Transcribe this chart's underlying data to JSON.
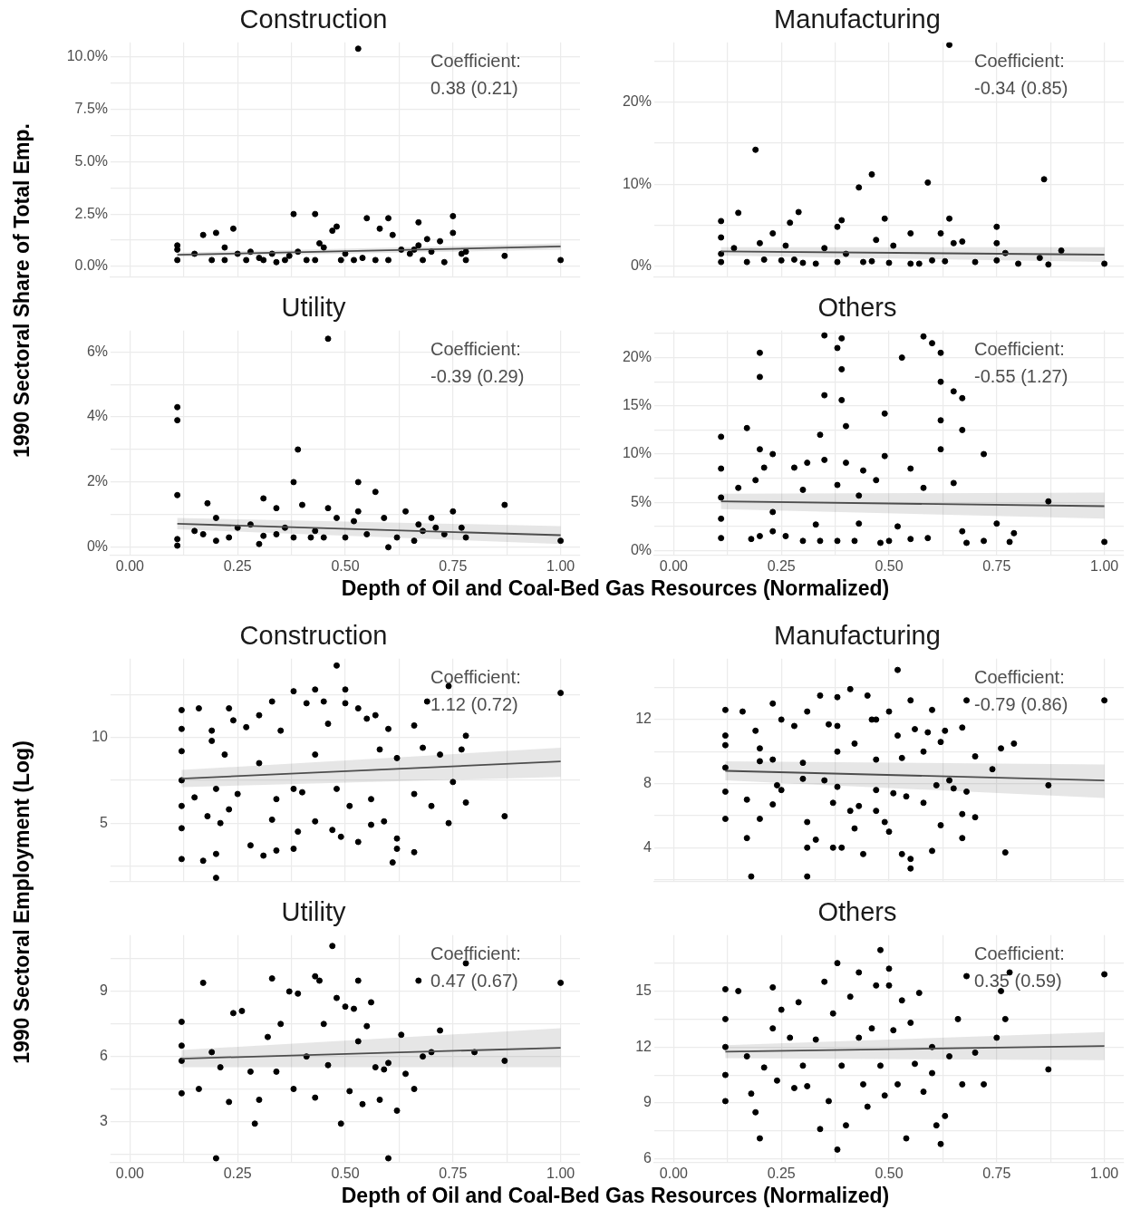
{
  "chart_data": [
    {
      "type": "scatter",
      "title": "Construction",
      "ylabel": "1990 Sectoral Share of Total Emp.",
      "annotations": [
        "Coefficient:\n0.38 (0.21)"
      ],
      "marker": "circle",
      "grid": true,
      "tick_labels": "y",
      "xlim": [
        -0.045,
        1.045
      ],
      "xticks": [
        {
          "value": 0,
          "label": null
        },
        {
          "value": 0.125,
          "label": null
        },
        {
          "value": 0.25,
          "label": null
        },
        {
          "value": 0.375,
          "label": null
        },
        {
          "value": 0.5,
          "label": null
        },
        {
          "value": 0.625,
          "label": null
        },
        {
          "value": 0.75,
          "label": null
        },
        {
          "value": 0.875,
          "label": null
        },
        {
          "value": 1,
          "label": null
        }
      ],
      "ylim": [
        -0.5,
        10.7
      ],
      "yticks": [
        {
          "value": 0,
          "label": "0.0%"
        },
        {
          "value": 1.25,
          "label": null
        },
        {
          "value": 2.5,
          "label": "2.5%"
        },
        {
          "value": 3.75,
          "label": null
        },
        {
          "value": 5,
          "label": "5.0%"
        },
        {
          "value": 6.25,
          "label": null
        },
        {
          "value": 7.5,
          "label": "7.5%"
        },
        {
          "value": 8.75,
          "label": null
        },
        {
          "value": 10,
          "label": "10.0%"
        }
      ],
      "series": [
        {
          "type": "scatter",
          "color": "#000000",
          "x": [
            0.11,
            0.11,
            0.11,
            0.15,
            0.17,
            0.19,
            0.2,
            0.22,
            0.22,
            0.24,
            0.25,
            0.27,
            0.28,
            0.3,
            0.31,
            0.33,
            0.34,
            0.36,
            0.37,
            0.38,
            0.39,
            0.41,
            0.43,
            0.43,
            0.44,
            0.45,
            0.47,
            0.48,
            0.49,
            0.5,
            0.52,
            0.53,
            0.54,
            0.55,
            0.57,
            0.58,
            0.6,
            0.6,
            0.61,
            0.63,
            0.65,
            0.66,
            0.67,
            0.68,
            0.67,
            0.69,
            0.7,
            0.72,
            0.73,
            0.75,
            0.75,
            0.77,
            0.78,
            0.78,
            0.87,
            1.0
          ],
          "values": [
            0.3,
            0.8,
            1.0,
            0.6,
            1.5,
            0.3,
            1.6,
            0.3,
            0.9,
            1.8,
            0.6,
            0.3,
            0.7,
            0.4,
            0.3,
            0.6,
            0.2,
            0.3,
            0.5,
            2.5,
            0.7,
            0.3,
            2.5,
            0.3,
            1.1,
            0.9,
            1.7,
            1.9,
            0.3,
            0.6,
            0.3,
            10.4,
            0.4,
            2.3,
            0.3,
            1.8,
            2.3,
            0.3,
            1.5,
            0.8,
            0.6,
            0.8,
            2.1,
            0.3,
            1.0,
            1.3,
            0.7,
            1.2,
            0.2,
            2.4,
            1.6,
            0.6,
            0.3,
            0.7,
            0.5,
            0.3
          ]
        },
        {
          "type": "line",
          "marker": "none",
          "color": "#4d4d4d",
          "x": [
            0.11,
            1.0
          ],
          "values": [
            0.55,
            0.95
          ],
          "lower": [
            0.45,
            0.8
          ],
          "upper": [
            0.65,
            1.1
          ]
        }
      ]
    },
    {
      "type": "scatter",
      "title": "Manufacturing",
      "annotations": [
        "Coefficient:\n-0.34 (0.85)"
      ],
      "marker": "circle",
      "grid": true,
      "tick_labels": "y",
      "xlim": [
        -0.045,
        1.045
      ],
      "xticks": [
        {
          "value": 0,
          "label": null
        },
        {
          "value": 0.125,
          "label": null
        },
        {
          "value": 0.25,
          "label": null
        },
        {
          "value": 0.375,
          "label": null
        },
        {
          "value": 0.5,
          "label": null
        },
        {
          "value": 0.625,
          "label": null
        },
        {
          "value": 0.75,
          "label": null
        },
        {
          "value": 0.875,
          "label": null
        },
        {
          "value": 1,
          "label": null
        }
      ],
      "ylim": [
        -1.3,
        27.3
      ],
      "yticks": [
        {
          "value": 0,
          "label": "0%"
        },
        {
          "value": 5,
          "label": null
        },
        {
          "value": 10,
          "label": "10%"
        },
        {
          "value": 15,
          "label": null
        },
        {
          "value": 20,
          "label": "20%"
        },
        {
          "value": 25,
          "label": null
        }
      ],
      "series": [
        {
          "type": "scatter",
          "color": "#000000",
          "x": [
            0.11,
            0.11,
            0.11,
            0.11,
            0.14,
            0.15,
            0.17,
            0.19,
            0.2,
            0.21,
            0.23,
            0.25,
            0.26,
            0.27,
            0.28,
            0.29,
            0.3,
            0.33,
            0.35,
            0.38,
            0.38,
            0.39,
            0.4,
            0.44,
            0.46,
            0.47,
            0.43,
            0.49,
            0.5,
            0.51,
            0.46,
            0.55,
            0.55,
            0.57,
            0.6,
            0.62,
            0.63,
            0.64,
            0.65,
            0.67,
            0.59,
            0.7,
            0.64,
            0.75,
            0.75,
            0.75,
            0.77,
            0.8,
            0.85,
            0.87,
            0.86,
            0.9,
            1.0
          ],
          "values": [
            0.5,
            1.5,
            3.5,
            5.5,
            2.2,
            6.5,
            0.5,
            14.2,
            2.8,
            0.8,
            4.0,
            0.7,
            2.5,
            5.3,
            0.8,
            6.6,
            0.4,
            0.3,
            2.2,
            0.5,
            4.8,
            5.6,
            1.5,
            0.5,
            0.6,
            3.2,
            9.6,
            5.8,
            0.4,
            2.5,
            11.2,
            4.0,
            0.3,
            0.3,
            0.7,
            4.0,
            0.6,
            5.8,
            2.8,
            3.0,
            10.2,
            0.5,
            27.0,
            4.8,
            2.8,
            0.7,
            1.6,
            0.3,
            1.0,
            0.2,
            10.6,
            1.9,
            0.3
          ]
        },
        {
          "type": "line",
          "marker": "none",
          "color": "#4d4d4d",
          "x": [
            0.11,
            1.0
          ],
          "values": [
            1.8,
            1.4
          ],
          "lower": [
            1.3,
            0.5
          ],
          "upper": [
            2.3,
            2.3
          ]
        }
      ]
    },
    {
      "type": "scatter",
      "title": "Utility",
      "xlabel": "Depth of Oil and Coal-Bed Gas Resources (Normalized)",
      "annotations": [
        "Coefficient:\n-0.39 (0.29)"
      ],
      "marker": "circle",
      "grid": true,
      "xlim": [
        -0.045,
        1.045
      ],
      "xticks": [
        {
          "value": 0,
          "label": "0.00"
        },
        {
          "value": 0.125,
          "label": null
        },
        {
          "value": 0.25,
          "label": "0.25"
        },
        {
          "value": 0.375,
          "label": null
        },
        {
          "value": 0.5,
          "label": "0.50"
        },
        {
          "value": 0.625,
          "label": null
        },
        {
          "value": 0.75,
          "label": "0.75"
        },
        {
          "value": 0.875,
          "label": null
        },
        {
          "value": 1,
          "label": "1.00"
        }
      ],
      "ylim": [
        -0.25,
        6.65
      ],
      "yticks": [
        {
          "value": 0,
          "label": "0%"
        },
        {
          "value": 1,
          "label": null
        },
        {
          "value": 2,
          "label": "2%"
        },
        {
          "value": 3,
          "label": null
        },
        {
          "value": 4,
          "label": "4%"
        },
        {
          "value": 5,
          "label": null
        },
        {
          "value": 6,
          "label": "6%"
        }
      ],
      "series": [
        {
          "type": "scatter",
          "color": "#000000",
          "x": [
            0.11,
            0.11,
            0.11,
            0.11,
            0.11,
            0.15,
            0.17,
            0.18,
            0.2,
            0.2,
            0.23,
            0.25,
            0.28,
            0.3,
            0.31,
            0.31,
            0.34,
            0.34,
            0.36,
            0.38,
            0.39,
            0.38,
            0.4,
            0.42,
            0.43,
            0.45,
            0.46,
            0.46,
            0.48,
            0.5,
            0.53,
            0.53,
            0.52,
            0.55,
            0.57,
            0.59,
            0.6,
            0.62,
            0.64,
            0.66,
            0.67,
            0.68,
            0.7,
            0.71,
            0.73,
            0.75,
            0.77,
            0.78,
            0.87,
            1.0
          ],
          "values": [
            4.3,
            3.9,
            1.6,
            0.25,
            0.05,
            0.5,
            0.4,
            1.35,
            0.9,
            0.2,
            0.3,
            0.6,
            0.7,
            0.1,
            0.35,
            1.5,
            0.4,
            1.2,
            0.6,
            2.0,
            3.0,
            0.3,
            1.3,
            0.3,
            0.5,
            0.3,
            6.4,
            1.2,
            0.9,
            0.3,
            2.0,
            1.1,
            0.8,
            0.4,
            1.7,
            0.9,
            0.0,
            0.3,
            1.1,
            0.2,
            0.7,
            0.5,
            0.9,
            0.6,
            0.4,
            1.1,
            0.6,
            0.3,
            1.3,
            0.2
          ]
        },
        {
          "type": "line",
          "marker": "none",
          "color": "#4d4d4d",
          "x": [
            0.11,
            1.0
          ],
          "values": [
            0.72,
            0.37
          ],
          "lower": [
            0.55,
            0.1
          ],
          "upper": [
            0.9,
            0.65
          ]
        }
      ]
    },
    {
      "type": "scatter",
      "title": "Others",
      "annotations": [
        "Coefficient:\n-0.55 (1.27)"
      ],
      "marker": "circle",
      "grid": true,
      "xlim": [
        -0.045,
        1.045
      ],
      "xticks": [
        {
          "value": 0,
          "label": "0.00"
        },
        {
          "value": 0.125,
          "label": null
        },
        {
          "value": 0.25,
          "label": "0.25"
        },
        {
          "value": 0.375,
          "label": null
        },
        {
          "value": 0.5,
          "label": "0.50"
        },
        {
          "value": 0.625,
          "label": null
        },
        {
          "value": 0.75,
          "label": "0.75"
        },
        {
          "value": 0.875,
          "label": null
        },
        {
          "value": 1,
          "label": "1.00"
        }
      ],
      "ylim": [
        -0.5,
        22.8
      ],
      "yticks": [
        {
          "value": 0,
          "label": "0%"
        },
        {
          "value": 2.5,
          "label": null
        },
        {
          "value": 5,
          "label": "5%"
        },
        {
          "value": 7.5,
          "label": null
        },
        {
          "value": 10,
          "label": "10%"
        },
        {
          "value": 12.5,
          "label": null
        },
        {
          "value": 15,
          "label": "15%"
        },
        {
          "value": 17.5,
          "label": null
        },
        {
          "value": 20,
          "label": "20%"
        },
        {
          "value": 22.5,
          "label": null
        }
      ],
      "series": [
        {
          "type": "scatter",
          "color": "#000000",
          "x": [
            0.11,
            0.11,
            0.11,
            0.11,
            0.11,
            0.15,
            0.17,
            0.18,
            0.19,
            0.2,
            0.2,
            0.2,
            0.2,
            0.21,
            0.23,
            0.23,
            0.23,
            0.26,
            0.28,
            0.3,
            0.3,
            0.31,
            0.33,
            0.34,
            0.34,
            0.35,
            0.35,
            0.35,
            0.38,
            0.38,
            0.38,
            0.39,
            0.39,
            0.39,
            0.4,
            0.4,
            0.42,
            0.43,
            0.43,
            0.44,
            0.47,
            0.48,
            0.49,
            0.49,
            0.5,
            0.52,
            0.53,
            0.55,
            0.55,
            0.58,
            0.58,
            0.59,
            0.6,
            0.62,
            0.62,
            0.62,
            0.62,
            0.65,
            0.65,
            0.67,
            0.67,
            0.67,
            0.68,
            0.72,
            0.72,
            0.75,
            0.78,
            0.79,
            0.87,
            1.0
          ],
          "values": [
            1.3,
            3.3,
            5.5,
            8.5,
            11.8,
            6.5,
            12.7,
            1.2,
            7.3,
            1.5,
            10.5,
            18.0,
            20.5,
            8.6,
            4.0,
            10.0,
            2.0,
            1.5,
            8.6,
            6.3,
            1.0,
            9.1,
            2.7,
            12.0,
            1.0,
            22.3,
            16.1,
            9.4,
            1.0,
            6.8,
            21.0,
            22.0,
            18.8,
            15.6,
            9.1,
            12.9,
            1.0,
            2.8,
            5.7,
            8.3,
            7.3,
            0.8,
            14.2,
            9.8,
            1.0,
            2.5,
            20.0,
            8.5,
            1.2,
            22.2,
            6.5,
            1.3,
            21.5,
            20.5,
            17.5,
            13.5,
            10.5,
            16.5,
            7.0,
            15.8,
            12.5,
            2.0,
            0.8,
            10.0,
            1.0,
            2.8,
            0.9,
            1.8,
            5.1,
            0.9
          ]
        },
        {
          "type": "line",
          "marker": "none",
          "color": "#4d4d4d",
          "x": [
            0.11,
            1.0
          ],
          "values": [
            5.1,
            4.6
          ],
          "lower": [
            4.3,
            3.3
          ],
          "upper": [
            5.9,
            6.0
          ]
        }
      ]
    },
    {
      "type": "scatter",
      "title": "Construction",
      "ylabel": "1990 Sectoral Employment (Log)",
      "annotations": [
        "Coefficient:\n1.12 (0.72)"
      ],
      "marker": "circle",
      "grid": true,
      "xlim": [
        -0.045,
        1.045
      ],
      "xticks": [
        {
          "value": 0,
          "label": null
        },
        {
          "value": 0.125,
          "label": null
        },
        {
          "value": 0.25,
          "label": null
        },
        {
          "value": 0.375,
          "label": null
        },
        {
          "value": 0.5,
          "label": null
        },
        {
          "value": 0.625,
          "label": null
        },
        {
          "value": 0.75,
          "label": null
        },
        {
          "value": 0.875,
          "label": null
        },
        {
          "value": 1,
          "label": null
        }
      ],
      "tick_labels": "y",
      "ylim": [
        1.6,
        14.6
      ],
      "yticks": [
        {
          "value": 2.5,
          "label": null
        },
        {
          "value": 5,
          "label": "5"
        },
        {
          "value": 7.5,
          "label": null
        },
        {
          "value": 10,
          "label": "10"
        },
        {
          "value": 12.5,
          "label": null
        }
      ],
      "series": [
        {
          "type": "scatter",
          "color": "#000000",
          "x": [
            0.12,
            0.12,
            0.12,
            0.12,
            0.12,
            0.12,
            0.12,
            0.15,
            0.16,
            0.17,
            0.18,
            0.19,
            0.19,
            0.2,
            0.2,
            0.2,
            0.21,
            0.22,
            0.23,
            0.23,
            0.24,
            0.25,
            0.27,
            0.28,
            0.3,
            0.3,
            0.31,
            0.33,
            0.33,
            0.34,
            0.34,
            0.35,
            0.38,
            0.38,
            0.38,
            0.39,
            0.4,
            0.41,
            0.43,
            0.43,
            0.43,
            0.45,
            0.46,
            0.47,
            0.48,
            0.48,
            0.49,
            0.5,
            0.5,
            0.51,
            0.53,
            0.53,
            0.55,
            0.56,
            0.56,
            0.57,
            0.58,
            0.59,
            0.6,
            0.61,
            0.62,
            0.62,
            0.62,
            0.66,
            0.66,
            0.66,
            0.68,
            0.69,
            0.7,
            0.72,
            0.74,
            0.74,
            0.75,
            0.77,
            0.78,
            0.78,
            0.87,
            1.0
          ],
          "values": [
            11.6,
            10.5,
            9.2,
            7.5,
            6.0,
            4.7,
            2.9,
            6.5,
            11.7,
            2.8,
            5.4,
            9.8,
            10.4,
            3.2,
            1.8,
            7.0,
            5.0,
            9.0,
            11.7,
            5.8,
            11.0,
            6.7,
            10.6,
            3.7,
            11.3,
            8.5,
            3.1,
            12.1,
            5.2,
            6.4,
            3.4,
            10.4,
            12.7,
            7.0,
            3.5,
            4.5,
            6.8,
            12.0,
            12.8,
            9.0,
            5.1,
            12.1,
            10.8,
            4.6,
            14.2,
            7.0,
            4.2,
            12.0,
            12.8,
            6.0,
            11.7,
            3.9,
            11.1,
            6.4,
            4.9,
            11.3,
            9.3,
            5.1,
            10.5,
            2.7,
            4.1,
            8.8,
            3.5,
            3.3,
            10.7,
            6.7,
            9.4,
            12.1,
            6.0,
            9.0,
            13.0,
            5.0,
            7.4,
            9.3,
            6.2,
            10.1,
            5.4,
            12.6
          ]
        },
        {
          "type": "line",
          "marker": "none",
          "color": "#4d4d4d",
          "x": [
            0.12,
            1.0
          ],
          "values": [
            7.6,
            8.6
          ],
          "lower": [
            7.1,
            7.7
          ],
          "upper": [
            8.1,
            9.4
          ]
        }
      ]
    },
    {
      "type": "scatter",
      "title": "Manufacturing",
      "annotations": [
        "Coefficient:\n-0.79 (0.86)"
      ],
      "marker": "circle",
      "grid": true,
      "xlim": [
        -0.045,
        1.045
      ],
      "xticks": [
        {
          "value": 0,
          "label": null
        },
        {
          "value": 0.125,
          "label": null
        },
        {
          "value": 0.25,
          "label": null
        },
        {
          "value": 0.375,
          "label": null
        },
        {
          "value": 0.5,
          "label": null
        },
        {
          "value": 0.625,
          "label": null
        },
        {
          "value": 0.75,
          "label": null
        },
        {
          "value": 0.875,
          "label": null
        },
        {
          "value": 1,
          "label": null
        }
      ],
      "tick_labels": "y",
      "ylim": [
        1.9,
        15.8
      ],
      "yticks": [
        {
          "value": 2,
          "label": null
        },
        {
          "value": 4,
          "label": "4"
        },
        {
          "value": 6,
          "label": null
        },
        {
          "value": 8,
          "label": "8"
        },
        {
          "value": 10,
          "label": null
        },
        {
          "value": 12,
          "label": "12"
        },
        {
          "value": 14,
          "label": null
        }
      ],
      "series": [
        {
          "type": "scatter",
          "color": "#000000",
          "x": [
            0.12,
            0.12,
            0.12,
            0.12,
            0.12,
            0.12,
            0.16,
            0.17,
            0.17,
            0.18,
            0.19,
            0.2,
            0.2,
            0.2,
            0.23,
            0.23,
            0.23,
            0.24,
            0.25,
            0.25,
            0.28,
            0.3,
            0.3,
            0.31,
            0.31,
            0.31,
            0.31,
            0.33,
            0.34,
            0.35,
            0.36,
            0.37,
            0.37,
            0.38,
            0.38,
            0.38,
            0.38,
            0.39,
            0.41,
            0.41,
            0.42,
            0.42,
            0.43,
            0.44,
            0.45,
            0.46,
            0.47,
            0.47,
            0.47,
            0.47,
            0.49,
            0.5,
            0.5,
            0.51,
            0.52,
            0.52,
            0.53,
            0.53,
            0.54,
            0.55,
            0.55,
            0.55,
            0.56,
            0.58,
            0.58,
            0.59,
            0.6,
            0.6,
            0.61,
            0.62,
            0.62,
            0.63,
            0.64,
            0.65,
            0.67,
            0.67,
            0.67,
            0.68,
            0.7,
            0.7,
            0.74,
            0.76,
            0.77,
            0.79,
            0.87,
            1.0,
            0.68
          ],
          "values": [
            12.6,
            11.0,
            10.4,
            9.0,
            7.5,
            5.8,
            12.5,
            7.0,
            4.6,
            2.2,
            11.3,
            10.2,
            5.8,
            9.4,
            6.7,
            9.5,
            13.0,
            7.9,
            12.0,
            7.6,
            11.6,
            9.3,
            8.3,
            5.6,
            4.0,
            2.2,
            12.5,
            4.5,
            13.5,
            8.2,
            11.7,
            6.8,
            4.0,
            11.6,
            10.0,
            7.8,
            13.4,
            4.0,
            6.3,
            13.9,
            5.2,
            10.5,
            6.6,
            3.6,
            13.5,
            12.0,
            9.5,
            12.0,
            7.6,
            6.3,
            5.6,
            12.5,
            5.0,
            7.4,
            11.0,
            15.1,
            9.6,
            3.6,
            7.2,
            13.2,
            3.3,
            2.7,
            11.4,
            6.8,
            10.0,
            11.2,
            12.6,
            3.8,
            7.9,
            10.6,
            5.4,
            11.3,
            8.2,
            7.7,
            6.1,
            11.5,
            4.6,
            7.5,
            9.7,
            5.9,
            8.9,
            10.2,
            3.7,
            10.5,
            7.9,
            13.2,
            13.2
          ]
        },
        {
          "type": "line",
          "marker": "none",
          "color": "#4d4d4d",
          "x": [
            0.12,
            1.0
          ],
          "values": [
            8.8,
            8.2
          ],
          "lower": [
            8.2,
            7.1
          ],
          "upper": [
            9.4,
            9.2
          ]
        }
      ]
    },
    {
      "type": "scatter",
      "title": "Utility",
      "xlabel": "Depth of Oil and Coal-Bed Gas Resources (Normalized)",
      "annotations": [
        "Coefficient:\n0.47 (0.67)"
      ],
      "marker": "circle",
      "grid": true,
      "xlim": [
        -0.045,
        1.045
      ],
      "xticks": [
        {
          "value": 0,
          "label": "0.00"
        },
        {
          "value": 0.125,
          "label": null
        },
        {
          "value": 0.25,
          "label": "0.25"
        },
        {
          "value": 0.375,
          "label": null
        },
        {
          "value": 0.5,
          "label": "0.50"
        },
        {
          "value": 0.625,
          "label": null
        },
        {
          "value": 0.75,
          "label": "0.75"
        },
        {
          "value": 0.875,
          "label": null
        },
        {
          "value": 1,
          "label": "1.00"
        }
      ],
      "ylim": [
        1.1,
        11.6
      ],
      "yticks": [
        {
          "value": 1.5,
          "label": null
        },
        {
          "value": 3,
          "label": "3"
        },
        {
          "value": 4.5,
          "label": null
        },
        {
          "value": 6,
          "label": "6"
        },
        {
          "value": 7.5,
          "label": null
        },
        {
          "value": 9,
          "label": "9"
        },
        {
          "value": 10.5,
          "label": null
        }
      ],
      "series": [
        {
          "type": "scatter",
          "color": "#000000",
          "x": [
            0.12,
            0.12,
            0.12,
            0.12,
            0.16,
            0.17,
            0.19,
            0.2,
            0.21,
            0.23,
            0.24,
            0.26,
            0.28,
            0.29,
            0.3,
            0.32,
            0.33,
            0.34,
            0.35,
            0.37,
            0.38,
            0.39,
            0.41,
            0.43,
            0.43,
            0.44,
            0.45,
            0.46,
            0.47,
            0.48,
            0.49,
            0.5,
            0.51,
            0.52,
            0.53,
            0.53,
            0.54,
            0.55,
            0.56,
            0.57,
            0.58,
            0.59,
            0.6,
            0.6,
            0.62,
            0.63,
            0.64,
            0.66,
            0.67,
            0.68,
            0.7,
            0.72,
            0.78,
            0.8,
            0.87,
            1.0
          ],
          "values": [
            7.6,
            6.5,
            5.8,
            4.3,
            4.5,
            9.4,
            6.2,
            1.3,
            5.5,
            3.9,
            8.0,
            8.1,
            5.3,
            2.9,
            4.0,
            6.9,
            9.6,
            5.3,
            7.5,
            9.0,
            4.5,
            8.9,
            6.0,
            9.7,
            4.1,
            9.5,
            7.5,
            5.6,
            11.1,
            8.7,
            2.9,
            8.3,
            4.4,
            8.2,
            9.5,
            6.7,
            3.8,
            7.4,
            8.5,
            5.5,
            4.0,
            5.4,
            1.3,
            5.7,
            3.5,
            7.0,
            5.2,
            4.5,
            9.5,
            6.0,
            6.2,
            7.2,
            10.3,
            6.2,
            5.8,
            9.4
          ]
        },
        {
          "type": "line",
          "marker": "none",
          "color": "#4d4d4d",
          "x": [
            0.12,
            1.0
          ],
          "values": [
            5.9,
            6.4
          ],
          "lower": [
            5.5,
            5.5
          ],
          "upper": [
            6.3,
            7.3
          ]
        }
      ]
    },
    {
      "type": "scatter",
      "title": "Others",
      "annotations": [
        "Coefficient:\n0.35 (0.59)"
      ],
      "marker": "circle",
      "grid": true,
      "xlim": [
        -0.045,
        1.045
      ],
      "xticks": [
        {
          "value": 0,
          "label": "0.00"
        },
        {
          "value": 0.125,
          "label": null
        },
        {
          "value": 0.25,
          "label": "0.25"
        },
        {
          "value": 0.375,
          "label": null
        },
        {
          "value": 0.5,
          "label": "0.50"
        },
        {
          "value": 0.625,
          "label": null
        },
        {
          "value": 0.75,
          "label": "0.75"
        },
        {
          "value": 0.875,
          "label": null
        },
        {
          "value": 1,
          "label": "1.00"
        }
      ],
      "ylim": [
        5.8,
        18.0
      ],
      "yticks": [
        {
          "value": 6,
          "label": "6"
        },
        {
          "value": 7.5,
          "label": null
        },
        {
          "value": 9,
          "label": "9"
        },
        {
          "value": 10.5,
          "label": null
        },
        {
          "value": 12,
          "label": "12"
        },
        {
          "value": 13.5,
          "label": null
        },
        {
          "value": 15,
          "label": "15"
        },
        {
          "value": 16.5,
          "label": null
        }
      ],
      "series": [
        {
          "type": "scatter",
          "color": "#000000",
          "x": [
            0.12,
            0.12,
            0.12,
            0.12,
            0.12,
            0.15,
            0.17,
            0.18,
            0.19,
            0.2,
            0.21,
            0.23,
            0.23,
            0.24,
            0.25,
            0.27,
            0.28,
            0.29,
            0.3,
            0.31,
            0.33,
            0.34,
            0.35,
            0.36,
            0.37,
            0.38,
            0.38,
            0.39,
            0.4,
            0.41,
            0.43,
            0.43,
            0.44,
            0.45,
            0.46,
            0.47,
            0.48,
            0.48,
            0.49,
            0.5,
            0.5,
            0.51,
            0.52,
            0.53,
            0.54,
            0.55,
            0.56,
            0.57,
            0.58,
            0.6,
            0.6,
            0.61,
            0.62,
            0.63,
            0.64,
            0.66,
            0.67,
            0.68,
            0.7,
            0.72,
            0.75,
            0.76,
            0.77,
            0.78,
            0.87,
            1.0
          ],
          "values": [
            15.1,
            13.5,
            12.0,
            10.5,
            9.1,
            15.0,
            11.5,
            9.5,
            8.5,
            7.1,
            10.9,
            15.2,
            13.0,
            10.2,
            14.0,
            12.5,
            9.8,
            14.4,
            11.0,
            9.9,
            12.4,
            7.6,
            15.5,
            9.1,
            13.8,
            6.5,
            16.5,
            11.0,
            7.8,
            14.7,
            16.0,
            12.5,
            10.0,
            8.8,
            13.0,
            15.3,
            17.2,
            11.0,
            9.4,
            15.3,
            16.2,
            12.9,
            10.0,
            14.5,
            7.1,
            13.3,
            11.1,
            14.9,
            9.6,
            12.0,
            10.6,
            7.8,
            6.8,
            8.3,
            11.5,
            13.5,
            10.0,
            15.8,
            11.7,
            10.0,
            12.5,
            15.0,
            13.5,
            16.0,
            10.8,
            15.9
          ]
        },
        {
          "type": "line",
          "marker": "none",
          "color": "#4d4d4d",
          "x": [
            0.12,
            1.0
          ],
          "values": [
            11.75,
            12.05
          ],
          "lower": [
            11.4,
            11.3
          ],
          "upper": [
            12.1,
            12.8
          ]
        }
      ]
    }
  ]
}
